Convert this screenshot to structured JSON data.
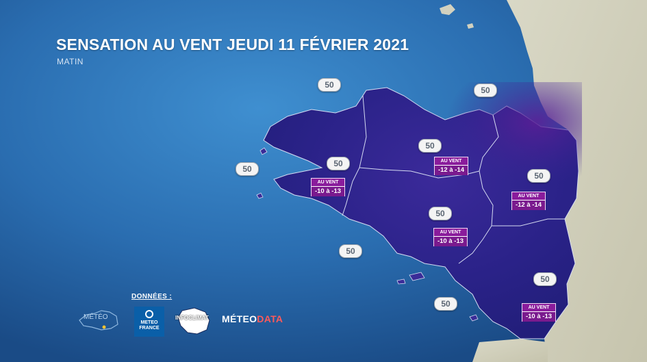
{
  "title": "SENSATION AU VENT JEUDI 11 FÉVRIER 2021",
  "subtitle": "MATIN",
  "wind_label": "AU VENT",
  "offshore_values": [
    "50",
    "50",
    "50",
    "50",
    "50",
    "50",
    "50",
    "50",
    "50",
    "50"
  ],
  "windchill_boxes": [
    {
      "label": "AU VENT",
      "value": "-10 à -13"
    },
    {
      "label": "AU VENT",
      "value": "-12 à -14"
    },
    {
      "label": "AU VENT",
      "value": "-12 à -14"
    },
    {
      "label": "AU VENT",
      "value": "-10 à -13"
    },
    {
      "label": "AU VENT",
      "value": "-10 à -13"
    }
  ],
  "footer": {
    "donnees": "DONNÉES :",
    "meteo_france": "METEO\nFRANCE",
    "infoclimat": "INFOCLIMAT",
    "meteodata_a": "MÉTEO",
    "meteodata_b": "DATA",
    "meteo_bretagne": "MÉTÉO"
  },
  "colors": {
    "sea": "#2a6fb3",
    "land_outside": "#cfcdb8",
    "region_cold": "#2a1f8a",
    "region_colder": "#4b1f8e",
    "box_purple": "#8a1c9c",
    "brand_red": "#ff5a5a"
  }
}
